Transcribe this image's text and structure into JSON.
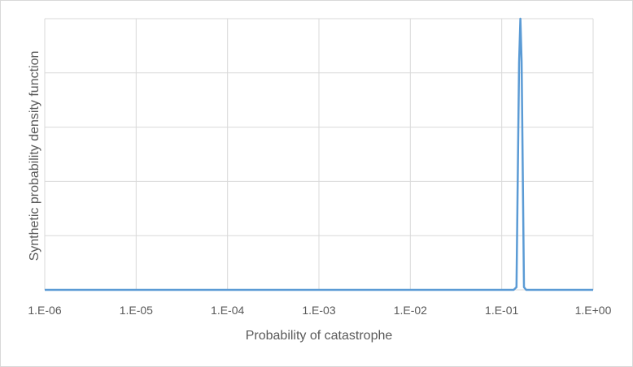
{
  "chart_data": {
    "type": "line",
    "title": "",
    "xlabel": "Probability of catastrophe",
    "ylabel": "Synthetic probability density function",
    "x_scale": "log",
    "xlim": [
      1e-06,
      1
    ],
    "x_ticks": [
      {
        "value": 1e-06,
        "label": "1.E-06"
      },
      {
        "value": 1e-05,
        "label": "1.E-05"
      },
      {
        "value": 0.0001,
        "label": "1.E-04"
      },
      {
        "value": 0.001,
        "label": "1.E-03"
      },
      {
        "value": 0.01,
        "label": "1.E-02"
      },
      {
        "value": 0.1,
        "label": "1.E-01"
      },
      {
        "value": 1,
        "label": "1.E+00"
      }
    ],
    "ylim": [
      0,
      5
    ],
    "y_gridlines": [
      0,
      1,
      2,
      3,
      4,
      5
    ],
    "y_tick_labels_shown": false,
    "grid": true,
    "legend": "none",
    "series": [
      {
        "color": "#5b9bd5",
        "x": [
          1e-06,
          1e-05,
          0.0001,
          0.001,
          0.01,
          0.1,
          0.135,
          0.145,
          0.155,
          0.16,
          0.165,
          0.175,
          0.185,
          0.2,
          1
        ],
        "y": [
          0,
          0,
          0,
          0,
          0,
          0,
          0,
          0.05,
          4.2,
          5.0,
          4.2,
          0.05,
          0,
          0,
          0
        ]
      }
    ],
    "colors": {
      "line": "#5b9bd5",
      "grid": "#d9d9d9",
      "axis": "#d9d9d9",
      "text": "#595959"
    }
  }
}
